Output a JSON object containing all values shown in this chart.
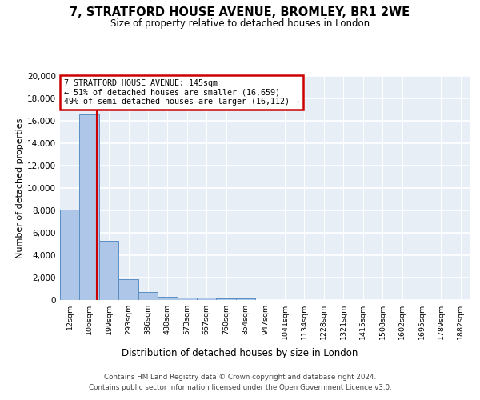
{
  "title": "7, STRATFORD HOUSE AVENUE, BROMLEY, BR1 2WE",
  "subtitle": "Size of property relative to detached houses in London",
  "xlabel": "Distribution of detached houses by size in London",
  "ylabel": "Number of detached properties",
  "bar_labels": [
    "12sqm",
    "106sqm",
    "199sqm",
    "293sqm",
    "386sqm",
    "480sqm",
    "573sqm",
    "667sqm",
    "760sqm",
    "854sqm",
    "947sqm",
    "1041sqm",
    "1134sqm",
    "1228sqm",
    "1321sqm",
    "1415sqm",
    "1508sqm",
    "1602sqm",
    "1695sqm",
    "1789sqm",
    "1882sqm"
  ],
  "bar_values": [
    8100,
    16600,
    5300,
    1850,
    700,
    300,
    220,
    185,
    170,
    130,
    0,
    0,
    0,
    0,
    0,
    0,
    0,
    0,
    0,
    0,
    0
  ],
  "bar_color": "#aec6e8",
  "bar_edge_color": "#5a8fc2",
  "background_color": "#e8eef6",
  "grid_color": "#ffffff",
  "red_line_x": 1.39,
  "annotation_text": "7 STRATFORD HOUSE AVENUE: 145sqm\n← 51% of detached houses are smaller (16,659)\n49% of semi-detached houses are larger (16,112) →",
  "annotation_box_color": "#ffffff",
  "annotation_box_edge": "#cc0000",
  "ylim": [
    0,
    20000
  ],
  "yticks": [
    0,
    2000,
    4000,
    6000,
    8000,
    10000,
    12000,
    14000,
    16000,
    18000,
    20000
  ],
  "footer_line1": "Contains HM Land Registry data © Crown copyright and database right 2024.",
  "footer_line2": "Contains public sector information licensed under the Open Government Licence v3.0."
}
